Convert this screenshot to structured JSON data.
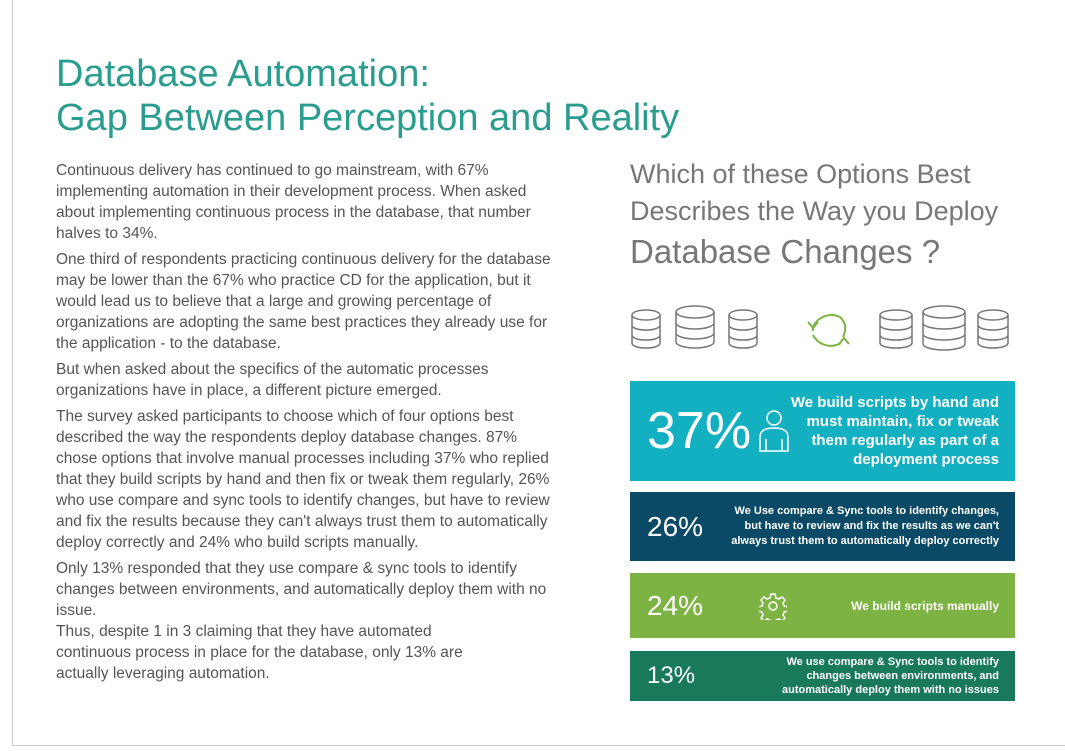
{
  "title": {
    "line1": "Database Automation:",
    "line2": "Gap Between Perception and Reality"
  },
  "paragraphs": [
    "Continuous delivery has continued to go mainstream, with 67% implementing automation in their development process. When asked about implementing continuous process in the database, that number halves to 34%.",
    "One third of respondents practicing continuous delivery for the database may be lower than the 67% who practice CD for the application, but it would lead us to believe that a large and growing percentage of organizations are adopting the same best practices they already use for the application - to the database.",
    "But when asked about the specifics of the automatic processes organizations have in place, a different picture emerged.",
    "The survey asked participants to choose which of four options best described the way the respondents deploy database changes. 87% chose options that involve manual processes including 37% who replied that they build scripts by hand and then fix or tweak them regularly, 26% who use compare and sync tools to identify changes, but have to review and fix the results because they can't always trust them to automatically deploy correctly and 24% who build scripts manually.",
    "Only 13% responded that they use compare & sync tools to identify changes between environments, and automatically deploy them with no issue.",
    "Thus, despite 1 in 3 claiming that they have automated continuous process in place for the database, only 13% are actually leveraging automation."
  ],
  "question": {
    "line1": "Which of these Options Best",
    "line2": "Describes the Way you Deploy",
    "line3": "Database Changes ?"
  },
  "results": [
    {
      "pct": "37%",
      "text": "We build scripts by hand and must maintain, fix or tweak them regularly as part of a deployment process",
      "color": "#12b0c0",
      "icon": "person-icon"
    },
    {
      "pct": "26%",
      "text": "We Use compare & Sync tools to identify changes, but have to review and fix the results as we can't always trust them to automatically deploy correctly",
      "color": "#0a4a66"
    },
    {
      "pct": "24%",
      "text": "We build scripts manually",
      "color": "#7cb342",
      "icon": "gear-icon"
    },
    {
      "pct": "13%",
      "text": "We use compare & Sync tools to identify changes between environments, and automatically deploy them with no issues",
      "color": "#187a5a"
    }
  ]
}
